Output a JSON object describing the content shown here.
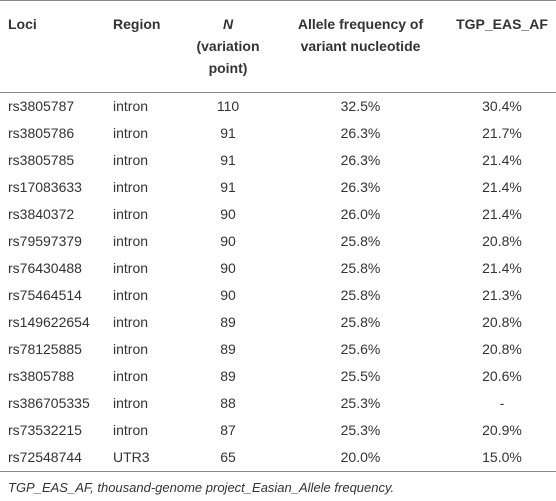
{
  "table": {
    "columns": [
      "Loci",
      "Region",
      "N",
      "Allele frequency of variant nucleotide",
      "TGP_EAS_AF"
    ],
    "n_subtitle": "(variation point)",
    "rows": [
      [
        "rs3805787",
        "intron",
        "110",
        "32.5%",
        "30.4%"
      ],
      [
        "rs3805786",
        "intron",
        "91",
        "26.3%",
        "21.7%"
      ],
      [
        "rs3805785",
        "intron",
        "91",
        "26.3%",
        "21.4%"
      ],
      [
        "rs17083633",
        "intron",
        "91",
        "26.3%",
        "21.4%"
      ],
      [
        "rs3840372",
        "intron",
        "90",
        "26.0%",
        "21.4%"
      ],
      [
        "rs79597379",
        "intron",
        "90",
        "25.8%",
        "20.8%"
      ],
      [
        "rs76430488",
        "intron",
        "90",
        "25.8%",
        "21.4%"
      ],
      [
        "rs75464514",
        "intron",
        "90",
        "25.8%",
        "21.3%"
      ],
      [
        "rs149622654",
        "intron",
        "89",
        "25.8%",
        "20.8%"
      ],
      [
        "rs78125885",
        "intron",
        "89",
        "25.6%",
        "20.8%"
      ],
      [
        "rs3805788",
        "intron",
        "89",
        "25.5%",
        "20.6%"
      ],
      [
        "rs386705335",
        "intron",
        "88",
        "25.3%",
        "-"
      ],
      [
        "rs73532215",
        "intron",
        "87",
        "25.3%",
        "20.9%"
      ],
      [
        "rs72548744",
        "UTR3",
        "65",
        "20.0%",
        "15.0%"
      ]
    ],
    "footnote": "TGP_EAS_AF, thousand-genome project_Easian_Allele frequency."
  }
}
